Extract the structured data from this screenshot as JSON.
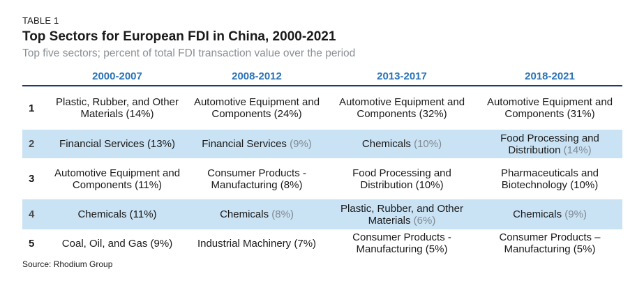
{
  "header": {
    "table_label": "TABLE 1",
    "title": "Top Sectors for European FDI in China, 2000-2021",
    "subtitle": "Top five sectors; percent of total FDI transaction value over the period"
  },
  "columns": [
    "2000-2007",
    "2008-2012",
    "2013-2017",
    "2018-2021"
  ],
  "rows": [
    {
      "rank": "1",
      "cells": [
        {
          "label": "Plastic, Rubber, and Other Materials",
          "pct": "(14%)"
        },
        {
          "label": "Automotive Equipment and Components",
          "pct": "(24%)"
        },
        {
          "label": "Automotive Equipment and Components",
          "pct": "(32%)"
        },
        {
          "label": "Automotive Equipment and Components",
          "pct": "(31%)"
        }
      ]
    },
    {
      "rank": "2",
      "cells": [
        {
          "label": "Financial Services",
          "pct": "(13%)"
        },
        {
          "label": "Financial Services",
          "pct": "(9%)"
        },
        {
          "label": "Chemicals",
          "pct": "(10%)"
        },
        {
          "label": "Food Processing and Distribution",
          "pct": "(14%)"
        }
      ]
    },
    {
      "rank": "3",
      "cells": [
        {
          "label": "Automotive Equipment and Components",
          "pct": "(11%)"
        },
        {
          "label": "Consumer Products - Manufacturing",
          "pct": "(8%)"
        },
        {
          "label": "Food Processing and Distribution",
          "pct": "(10%)"
        },
        {
          "label": "Pharmaceuticals and Biotechnology",
          "pct": "(10%)"
        }
      ]
    },
    {
      "rank": "4",
      "cells": [
        {
          "label": "Chemicals",
          "pct": "(11%)"
        },
        {
          "label": "Chemicals",
          "pct": "(8%)"
        },
        {
          "label": "Plastic, Rubber, and Other Materials",
          "pct": "(6%)"
        },
        {
          "label": "Chemicals",
          "pct": "(9%)"
        }
      ]
    },
    {
      "rank": "5",
      "cells": [
        {
          "label": "Coal, Oil, and Gas",
          "pct": "(9%)"
        },
        {
          "label": "Industrial Machinery",
          "pct": "(7%)"
        },
        {
          "label": "Consumer Products - Manufacturing",
          "pct": "(5%)"
        },
        {
          "label": "Consumer Products – Manufacturing",
          "pct": "(5%)"
        }
      ]
    }
  ],
  "footer": {
    "source": "Source: Rhodium Group"
  },
  "colors": {
    "header_text": "#2a73b6",
    "band": "#c9e2f4",
    "rule": "#1f3d63"
  }
}
